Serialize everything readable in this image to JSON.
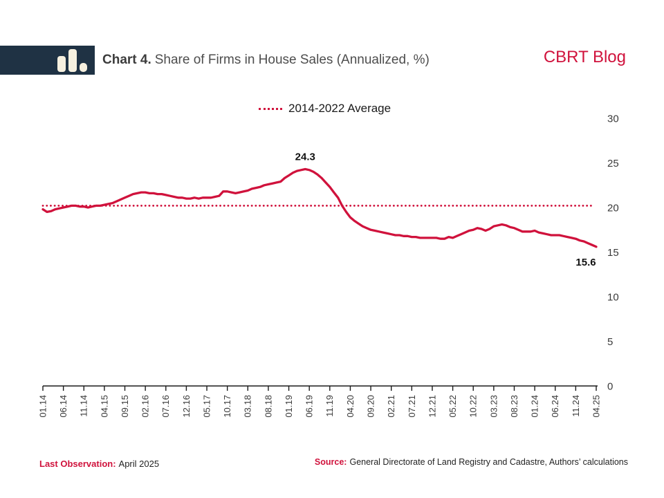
{
  "header": {
    "title_prefix": "Chart 4.",
    "title_rest": "Share of Firms in House Sales (Annualized, %)",
    "brand": "CBRT Blog"
  },
  "legend": {
    "label": "2014-2022 Average"
  },
  "footer": {
    "last_obs_label": "Last Observation:",
    "last_obs_value": "April 2025",
    "source_label": "Source:",
    "source_value": "General Directorate of Land Registry and Cadastre, Authors’ calculations"
  },
  "colors": {
    "accent": "#D0123C",
    "logo_bg": "#1F3244",
    "logo_icon": "#F6F0DF",
    "axis_text": "#3A3A3A"
  },
  "chart_data": {
    "type": "line",
    "title": "Share of Firms in House Sales (Annualized, %)",
    "x_tick_labels": [
      "01.14",
      "06.14",
      "11.14",
      "04.15",
      "09.15",
      "02.16",
      "07.16",
      "12.16",
      "05.17",
      "10.17",
      "03.18",
      "08.18",
      "01.19",
      "06.19",
      "11.19",
      "04.20",
      "09.20",
      "02.21",
      "07.21",
      "12.21",
      "05.22",
      "10.22",
      "03.23",
      "08.23",
      "01.24",
      "06.24",
      "11.24",
      "04.25"
    ],
    "tick_interval_months": 5,
    "y_ticks": [
      0,
      5,
      10,
      15,
      20,
      25,
      30
    ],
    "ylim": [
      0,
      30
    ],
    "grid": false,
    "legend_position": "top-center",
    "average_line": {
      "label": "2014-2022 Average",
      "value": 20.2
    },
    "series": [
      {
        "name": "Share of Firms in House Sales",
        "values": [
          19.8,
          19.5,
          19.6,
          19.8,
          19.9,
          20.0,
          20.1,
          20.2,
          20.2,
          20.1,
          20.1,
          20.0,
          20.1,
          20.2,
          20.2,
          20.3,
          20.4,
          20.5,
          20.7,
          20.9,
          21.1,
          21.3,
          21.5,
          21.6,
          21.7,
          21.7,
          21.6,
          21.6,
          21.5,
          21.5,
          21.4,
          21.3,
          21.2,
          21.1,
          21.1,
          21.0,
          21.0,
          21.1,
          21.0,
          21.1,
          21.1,
          21.1,
          21.2,
          21.3,
          21.8,
          21.8,
          21.7,
          21.6,
          21.7,
          21.8,
          21.9,
          22.1,
          22.2,
          22.3,
          22.5,
          22.6,
          22.7,
          22.8,
          22.9,
          23.3,
          23.6,
          23.9,
          24.1,
          24.2,
          24.3,
          24.2,
          24.0,
          23.7,
          23.3,
          22.8,
          22.3,
          21.7,
          21.1,
          20.2,
          19.5,
          18.9,
          18.5,
          18.2,
          17.9,
          17.7,
          17.5,
          17.4,
          17.3,
          17.2,
          17.1,
          17.0,
          16.9,
          16.9,
          16.8,
          16.8,
          16.7,
          16.7,
          16.6,
          16.6,
          16.6,
          16.6,
          16.6,
          16.5,
          16.5,
          16.7,
          16.6,
          16.8,
          17.0,
          17.2,
          17.4,
          17.5,
          17.7,
          17.6,
          17.4,
          17.6,
          17.9,
          18.0,
          18.1,
          18.0,
          17.8,
          17.7,
          17.5,
          17.3,
          17.3,
          17.3,
          17.4,
          17.2,
          17.1,
          17.0,
          16.9,
          16.9,
          16.9,
          16.8,
          16.7,
          16.6,
          16.5,
          16.3,
          16.2,
          16.0,
          15.8,
          15.6
        ]
      }
    ],
    "annotations": [
      {
        "label": "24.3",
        "index": 64,
        "position": "above"
      },
      {
        "label": "15.6",
        "index": 135,
        "position": "below"
      }
    ]
  }
}
